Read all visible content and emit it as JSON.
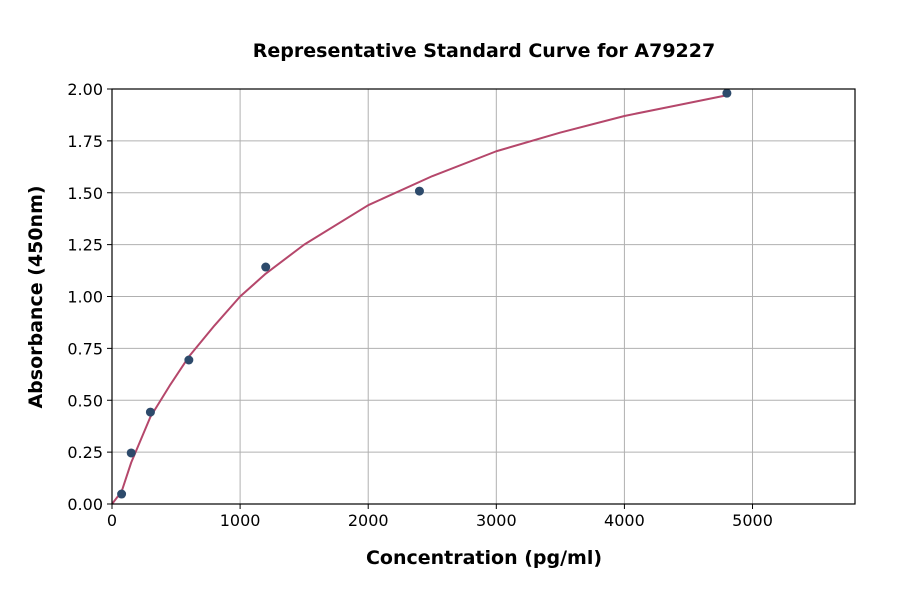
{
  "chart_data": {
    "type": "scatter",
    "title": "Representative Standard Curve for A79227",
    "xlabel": "Concentration (pg/ml)",
    "ylabel": "Absorbance (450nm)",
    "xlim": [
      0,
      5800
    ],
    "ylim": [
      0,
      2.0
    ],
    "grid": true,
    "x_ticks": [
      0,
      1000,
      2000,
      3000,
      4000,
      5000
    ],
    "x_tick_labels": [
      "0",
      "1000",
      "2000",
      "3000",
      "4000",
      "5000"
    ],
    "y_ticks": [
      0,
      0.25,
      0.5,
      0.75,
      1.0,
      1.25,
      1.5,
      1.75,
      2.0
    ],
    "y_tick_labels": [
      "0.00",
      "0.25",
      "0.50",
      "0.75",
      "1.00",
      "1.25",
      "1.50",
      "1.75",
      "2.00"
    ],
    "points": {
      "x": [
        75,
        150,
        300,
        600,
        1200,
        2400,
        4800
      ],
      "y": [
        0.048,
        0.246,
        0.443,
        0.694,
        1.142,
        1.508,
        1.98
      ],
      "color": "#2d4a6b"
    },
    "fit_curve": {
      "x": [
        0,
        75,
        150,
        300,
        450,
        600,
        800,
        1000,
        1200,
        1500,
        2000,
        2500,
        3000,
        3500,
        4000,
        4400,
        4800
      ],
      "y": [
        0,
        0.06,
        0.2,
        0.42,
        0.57,
        0.71,
        0.86,
        1.0,
        1.11,
        1.25,
        1.44,
        1.58,
        1.7,
        1.79,
        1.87,
        1.92,
        1.97
      ],
      "color": "#b5476b"
    }
  }
}
